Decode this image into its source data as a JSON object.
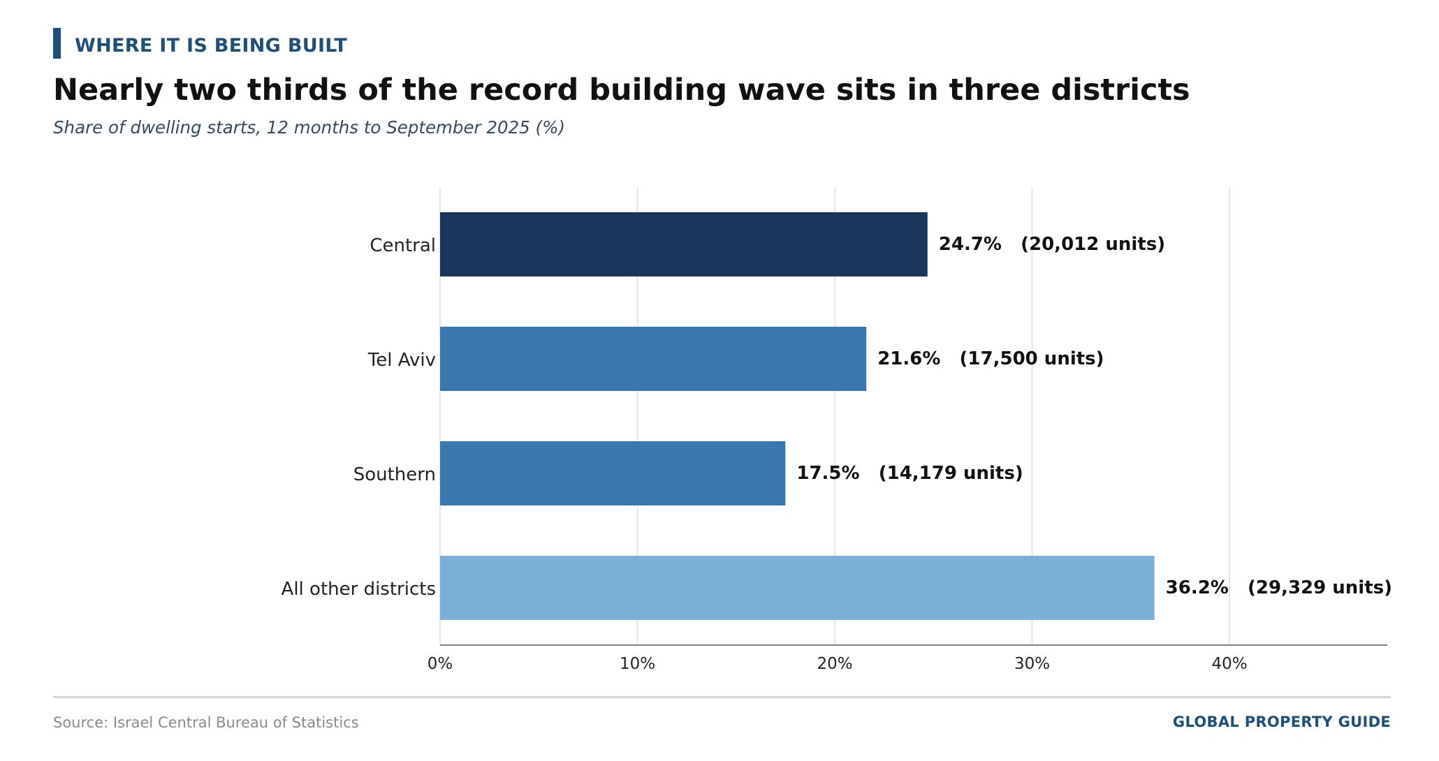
{
  "header": {
    "kicker": "WHERE IT IS BEING BUILT",
    "title": "Nearly two thirds of the record building wave sits in three districts",
    "subtitle": "Share of dwelling starts, 12 months to September 2025 (%)"
  },
  "footer": {
    "source": "Source: Israel Central Bureau of Statistics",
    "brand": "GLOBAL PROPERTY GUIDE"
  },
  "colors": {
    "accent": "#1f4e79",
    "central": "#1a365d",
    "tel_aviv": "#3878ae",
    "southern": "#3878ae",
    "other": "#7bafd5"
  },
  "chart_data": {
    "type": "bar",
    "orientation": "horizontal",
    "categories": [
      "Central",
      "Tel Aviv",
      "Southern",
      "All other districts"
    ],
    "values": [
      24.7,
      21.6,
      17.5,
      36.2
    ],
    "units": [
      20012,
      17500,
      14179,
      29329
    ],
    "data_labels": [
      "24.7%   (20,012 units)",
      "21.6%   (17,500 units)",
      "17.5%   (14,179 units)",
      "36.2%   (29,329 units)"
    ],
    "bar_colors": [
      "#1a365d",
      "#3878ae",
      "#3878ae",
      "#7bafd5"
    ],
    "xlim": [
      0,
      48
    ],
    "xticks": [
      0,
      10,
      20,
      30,
      40
    ],
    "xtick_labels": [
      "0%",
      "10%",
      "20%",
      "30%",
      "40%"
    ],
    "xlabel": "",
    "ylabel": "",
    "grid": "vertical"
  }
}
